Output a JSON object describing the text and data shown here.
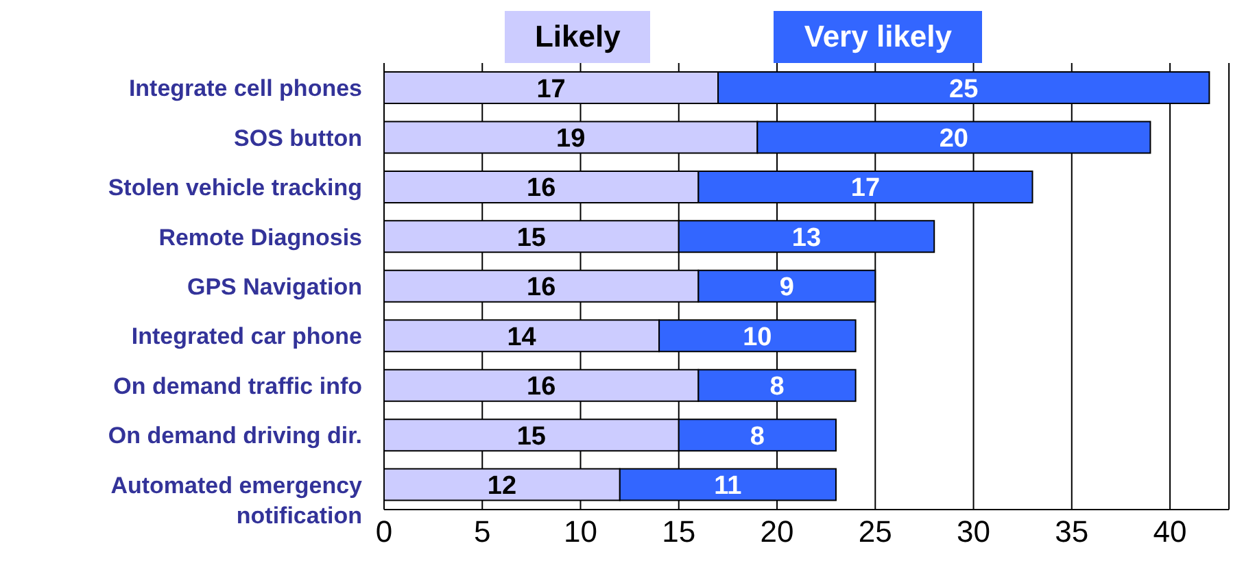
{
  "chart_data": {
    "type": "bar",
    "orientation": "horizontal",
    "stacked": true,
    "categories": [
      "Integrate cell phones",
      "SOS button",
      "Stolen vehicle tracking",
      "Remote Diagnosis",
      "GPS Navigation",
      "Integrated car phone",
      "On demand traffic info",
      "On demand driving dir.",
      "Automated emergency notification"
    ],
    "series": [
      {
        "name": "Likely",
        "color": "#ccccff",
        "values": [
          17,
          19,
          16,
          15,
          16,
          14,
          16,
          15,
          12
        ]
      },
      {
        "name": "Very likely",
        "color": "#3366ff",
        "values": [
          25,
          20,
          17,
          13,
          9,
          10,
          8,
          8,
          11
        ]
      }
    ],
    "xlim": [
      0,
      43
    ],
    "xticks": [
      0,
      5,
      10,
      15,
      20,
      25,
      30,
      35,
      40
    ],
    "grid": "x",
    "legend": "top",
    "data_labels": true
  }
}
